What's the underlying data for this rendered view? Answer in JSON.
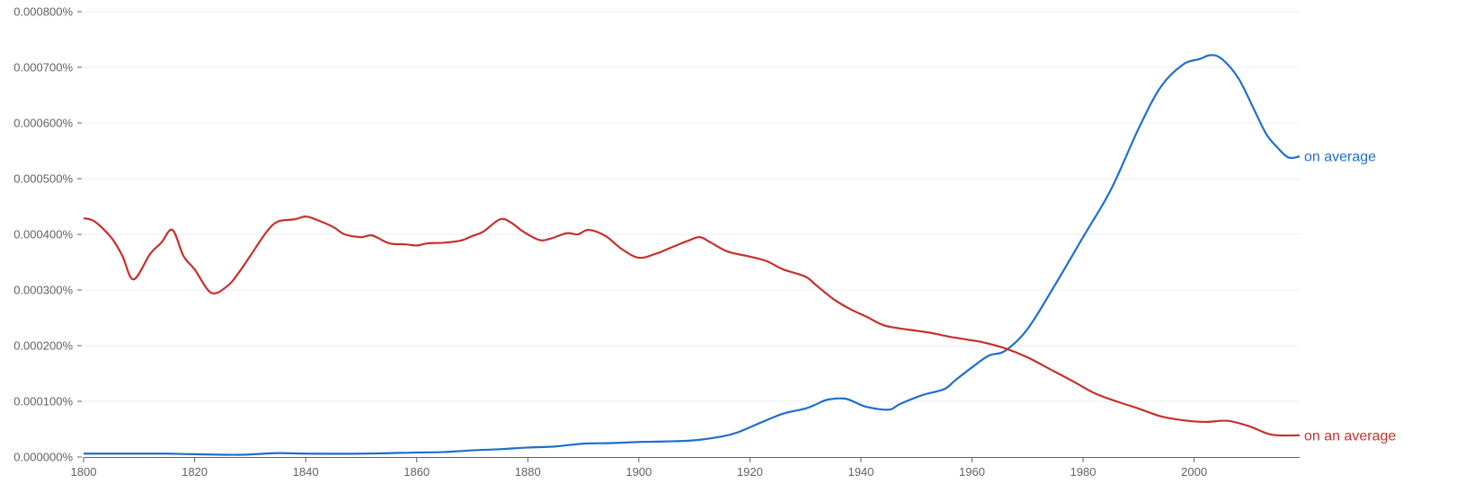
{
  "chart_data": {
    "type": "line",
    "title": "",
    "xlabel": "",
    "ylabel": "",
    "xlim": [
      1800,
      2019
    ],
    "ylim": [
      0,
      0.0008
    ],
    "grid": true,
    "legend": "inline-right",
    "x_ticks": [
      "1800",
      "1820",
      "1840",
      "1860",
      "1880",
      "1900",
      "1920",
      "1940",
      "1960",
      "1980",
      "2000"
    ],
    "y_ticks": [
      "0.000000%",
      "0.000100%",
      "0.000200%",
      "0.000300%",
      "0.000400%",
      "0.000500%",
      "0.000600%",
      "0.000700%",
      "0.000800%"
    ],
    "series": [
      {
        "name": "on average",
        "color": "#1f6fc9",
        "points": [
          [
            1800,
            6e-06
          ],
          [
            1810,
            6e-06
          ],
          [
            1815,
            6e-06
          ],
          [
            1820,
            5e-06
          ],
          [
            1828,
            4e-06
          ],
          [
            1835,
            7e-06
          ],
          [
            1840,
            6e-06
          ],
          [
            1850,
            6e-06
          ],
          [
            1860,
            8e-06
          ],
          [
            1865,
            9e-06
          ],
          [
            1870,
            1.2e-05
          ],
          [
            1875,
            1.4e-05
          ],
          [
            1880,
            1.7e-05
          ],
          [
            1885,
            1.9e-05
          ],
          [
            1890,
            2.4e-05
          ],
          [
            1895,
            2.5e-05
          ],
          [
            1900,
            2.7e-05
          ],
          [
            1905,
            2.8e-05
          ],
          [
            1910,
            3e-05
          ],
          [
            1915,
            3.7e-05
          ],
          [
            1918,
            4.5e-05
          ],
          [
            1922,
            6.2e-05
          ],
          [
            1926,
            7.8e-05
          ],
          [
            1930,
            8.7e-05
          ],
          [
            1932,
            9.5e-05
          ],
          [
            1934,
            0.000103
          ],
          [
            1937,
            0.000105
          ],
          [
            1939,
            9.8e-05
          ],
          [
            1941,
            9e-05
          ],
          [
            1945,
            8.5e-05
          ],
          [
            1947,
            9.5e-05
          ],
          [
            1951,
            0.000111
          ],
          [
            1955,
            0.000122
          ],
          [
            1957,
            0.000138
          ],
          [
            1960,
            0.000161
          ],
          [
            1963,
            0.000182
          ],
          [
            1966,
            0.000191
          ],
          [
            1970,
            0.00023
          ],
          [
            1975,
            0.00031
          ],
          [
            1980,
            0.000395
          ],
          [
            1985,
            0.00048
          ],
          [
            1990,
            0.00059
          ],
          [
            1994,
            0.000665
          ],
          [
            1998,
            0.000705
          ],
          [
            2001,
            0.000715
          ],
          [
            2003,
            0.000722
          ],
          [
            2005,
            0.000715
          ],
          [
            2008,
            0.00068
          ],
          [
            2011,
            0.00062
          ],
          [
            2013,
            0.00058
          ],
          [
            2015,
            0.000556
          ],
          [
            2017,
            0.000538
          ],
          [
            2019,
            0.00054
          ]
        ]
      },
      {
        "name": "on an average",
        "color": "#c5302e",
        "points": [
          [
            1800,
            0.000429
          ],
          [
            1802,
            0.000423
          ],
          [
            1805,
            0.000394
          ],
          [
            1807,
            0.000361
          ],
          [
            1809,
            0.000319
          ],
          [
            1812,
            0.000365
          ],
          [
            1814,
            0.000385
          ],
          [
            1816,
            0.000408
          ],
          [
            1818,
            0.000361
          ],
          [
            1820,
            0.000337
          ],
          [
            1823,
            0.000295
          ],
          [
            1826,
            0.000308
          ],
          [
            1828,
            0.000332
          ],
          [
            1830,
            0.000361
          ],
          [
            1833,
            0.000405
          ],
          [
            1835,
            0.000423
          ],
          [
            1838,
            0.000427
          ],
          [
            1840,
            0.000432
          ],
          [
            1842,
            0.000426
          ],
          [
            1845,
            0.000413
          ],
          [
            1847,
            0.0004
          ],
          [
            1850,
            0.000395
          ],
          [
            1852,
            0.000398
          ],
          [
            1855,
            0.000384
          ],
          [
            1858,
            0.000382
          ],
          [
            1860,
            0.00038
          ],
          [
            1862,
            0.000384
          ],
          [
            1865,
            0.000385
          ],
          [
            1868,
            0.000389
          ],
          [
            1870,
            0.000397
          ],
          [
            1872,
            0.000405
          ],
          [
            1875,
            0.000427
          ],
          [
            1877,
            0.000421
          ],
          [
            1879,
            0.000406
          ],
          [
            1882,
            0.00039
          ],
          [
            1884,
            0.000392
          ],
          [
            1887,
            0.000402
          ],
          [
            1889,
            0.0004
          ],
          [
            1891,
            0.000408
          ],
          [
            1894,
            0.000397
          ],
          [
            1897,
            0.000373
          ],
          [
            1900,
            0.000358
          ],
          [
            1903,
            0.000365
          ],
          [
            1906,
            0.000377
          ],
          [
            1909,
            0.000389
          ],
          [
            1911,
            0.000395
          ],
          [
            1913,
            0.000385
          ],
          [
            1916,
            0.000369
          ],
          [
            1920,
            0.00036
          ],
          [
            1923,
            0.000352
          ],
          [
            1926,
            0.000337
          ],
          [
            1930,
            0.000324
          ],
          [
            1932,
            0.000308
          ],
          [
            1935,
            0.000284
          ],
          [
            1938,
            0.000266
          ],
          [
            1941,
            0.000252
          ],
          [
            1944,
            0.000237
          ],
          [
            1947,
            0.000231
          ],
          [
            1952,
            0.000224
          ],
          [
            1956,
            0.000216
          ],
          [
            1959,
            0.000211
          ],
          [
            1962,
            0.000206
          ],
          [
            1966,
            0.000195
          ],
          [
            1970,
            0.000179
          ],
          [
            1974,
            0.000158
          ],
          [
            1978,
            0.000137
          ],
          [
            1982,
            0.000115
          ],
          [
            1986,
            0.0001
          ],
          [
            1990,
            8.7e-05
          ],
          [
            1994,
            7.3e-05
          ],
          [
            1998,
            6.6e-05
          ],
          [
            2002,
            6.3e-05
          ],
          [
            2006,
            6.5e-05
          ],
          [
            2010,
            5.5e-05
          ],
          [
            2014,
            4e-05
          ],
          [
            2019,
            3.9e-05
          ]
        ]
      }
    ]
  }
}
